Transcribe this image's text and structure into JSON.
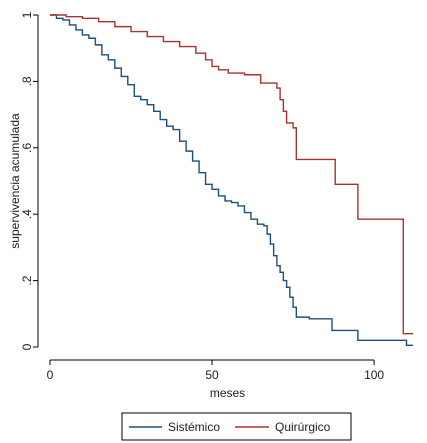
{
  "chart_data": {
    "type": "line",
    "line_shape": "step",
    "xlabel": "meses",
    "ylabel": "supervivencia acumulada",
    "xlim": [
      0,
      112
    ],
    "ylim": [
      0,
      1
    ],
    "x_ticks": [
      0,
      50,
      100
    ],
    "x_tick_labels": [
      "0",
      "50",
      "100"
    ],
    "y_ticks": [
      0,
      0.2,
      0.4,
      0.6,
      0.8,
      1
    ],
    "y_tick_labels": [
      "0",
      ".2",
      ".4",
      ".6",
      ".8",
      "1"
    ],
    "grid": false,
    "legend_position": "bottom",
    "series": [
      {
        "name": "Sistémico",
        "color": "#1f4e79",
        "x": [
          0,
          2,
          4,
          6,
          8,
          10,
          12,
          14,
          16,
          18,
          20,
          22,
          24,
          26,
          28,
          30,
          32,
          34,
          36,
          38,
          40,
          42,
          44,
          46,
          48,
          50,
          52,
          54,
          56,
          58,
          60,
          62,
          64,
          66,
          67,
          68,
          69,
          70,
          71,
          72,
          73,
          74,
          75,
          76,
          80,
          85,
          87,
          95,
          100,
          110,
          112
        ],
        "y": [
          1,
          0.99,
          0.985,
          0.97,
          0.955,
          0.94,
          0.93,
          0.91,
          0.88,
          0.865,
          0.84,
          0.815,
          0.79,
          0.755,
          0.745,
          0.73,
          0.71,
          0.685,
          0.665,
          0.655,
          0.62,
          0.59,
          0.56,
          0.525,
          0.49,
          0.475,
          0.455,
          0.44,
          0.435,
          0.425,
          0.405,
          0.385,
          0.37,
          0.365,
          0.34,
          0.31,
          0.275,
          0.245,
          0.225,
          0.2,
          0.18,
          0.15,
          0.12,
          0.09,
          0.085,
          0.085,
          0.05,
          0.02,
          0.02,
          0.005,
          0.005
        ]
      },
      {
        "name": "Quirúrgico",
        "color": "#a83232",
        "x": [
          0,
          5,
          10,
          15,
          20,
          25,
          30,
          35,
          40,
          45,
          48,
          50,
          52,
          55,
          60,
          65,
          70,
          71,
          72,
          73,
          75,
          76,
          88,
          95,
          108,
          109,
          112
        ],
        "y": [
          1,
          0.995,
          0.99,
          0.98,
          0.965,
          0.95,
          0.935,
          0.92,
          0.905,
          0.885,
          0.865,
          0.845,
          0.835,
          0.825,
          0.82,
          0.795,
          0.78,
          0.745,
          0.71,
          0.675,
          0.66,
          0.565,
          0.49,
          0.385,
          0.385,
          0.04,
          0.04
        ]
      }
    ]
  }
}
